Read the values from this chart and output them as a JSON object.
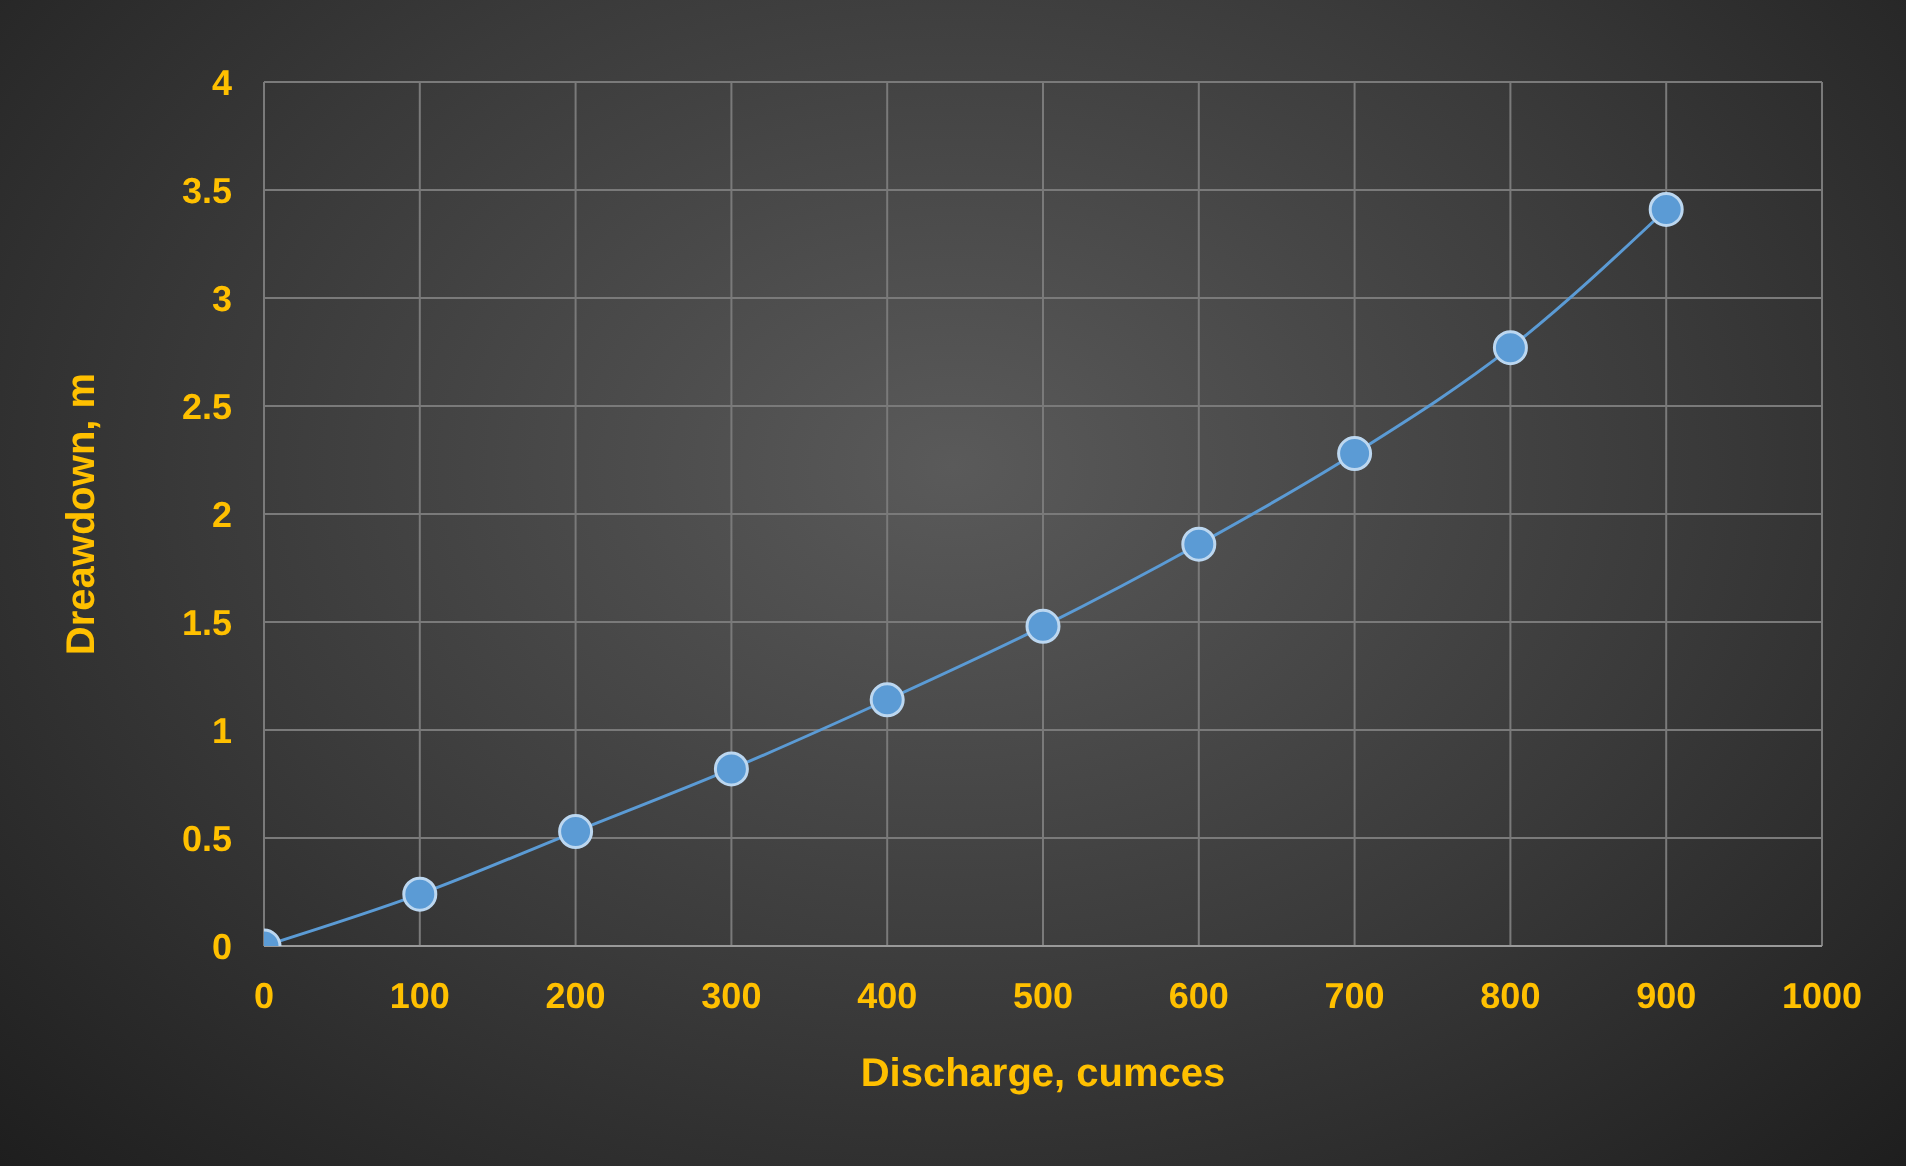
{
  "chart_data": {
    "type": "line",
    "xlabel": "Discharge, cumces",
    "ylabel": "Dreawdown, m",
    "x": [
      0,
      100,
      200,
      300,
      400,
      500,
      600,
      700,
      800,
      900
    ],
    "series": [
      {
        "color": "#5b9bd5",
        "values": [
          0,
          0.24,
          0.53,
          0.82,
          1.14,
          1.48,
          1.86,
          2.28,
          2.77,
          3.41
        ]
      }
    ],
    "xlim": [
      0,
      1000
    ],
    "xticks": [
      0,
      100,
      200,
      300,
      400,
      500,
      600,
      700,
      800,
      900,
      1000
    ],
    "ylim": [
      0,
      4
    ],
    "yticks": [
      0,
      0.5,
      1,
      1.5,
      2,
      2.5,
      3,
      3.5,
      4
    ],
    "grid": true,
    "marker": "circle",
    "line_style": "solid",
    "legend": false
  }
}
